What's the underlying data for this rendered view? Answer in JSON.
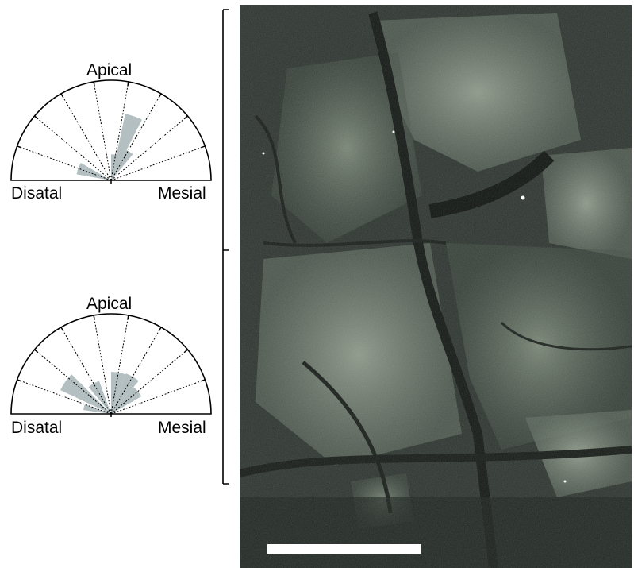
{
  "panels": [
    {
      "id": "top",
      "labels": {
        "top": "Apical",
        "left": "Disatal",
        "right": "Mesial"
      },
      "rose_segments": [
        {
          "from_deg": 150,
          "to_deg": 170,
          "length": 0.35
        },
        {
          "from_deg": 70,
          "to_deg": 90,
          "length": 0.26
        },
        {
          "from_deg": 50,
          "to_deg": 70,
          "length": 0.34
        },
        {
          "from_deg": 70,
          "to_deg": 90,
          "length": 0.0
        },
        {
          "from_deg": 63,
          "to_deg": 78,
          "length": 0.68
        }
      ]
    },
    {
      "id": "bottom",
      "labels": {
        "top": "Apical",
        "left": "Disatal",
        "right": "Mesial"
      },
      "rose_segments": [
        {
          "from_deg": 135,
          "to_deg": 155,
          "length": 0.56
        },
        {
          "from_deg": 110,
          "to_deg": 130,
          "length": 0.35
        },
        {
          "from_deg": 160,
          "to_deg": 172,
          "length": 0.28
        },
        {
          "from_deg": 70,
          "to_deg": 90,
          "length": 0.42
        },
        {
          "from_deg": 50,
          "to_deg": 70,
          "length": 0.43
        },
        {
          "from_deg": 30,
          "to_deg": 50,
          "length": 0.35
        }
      ]
    }
  ],
  "colors": {
    "rose_fill": "#b3bfc1",
    "outline": "#000000",
    "micrograph_base": "#2a302c",
    "micrograph_light": "#8f9a8c",
    "micrograph_dark": "#101412",
    "scale_bar": "#ffffff"
  }
}
